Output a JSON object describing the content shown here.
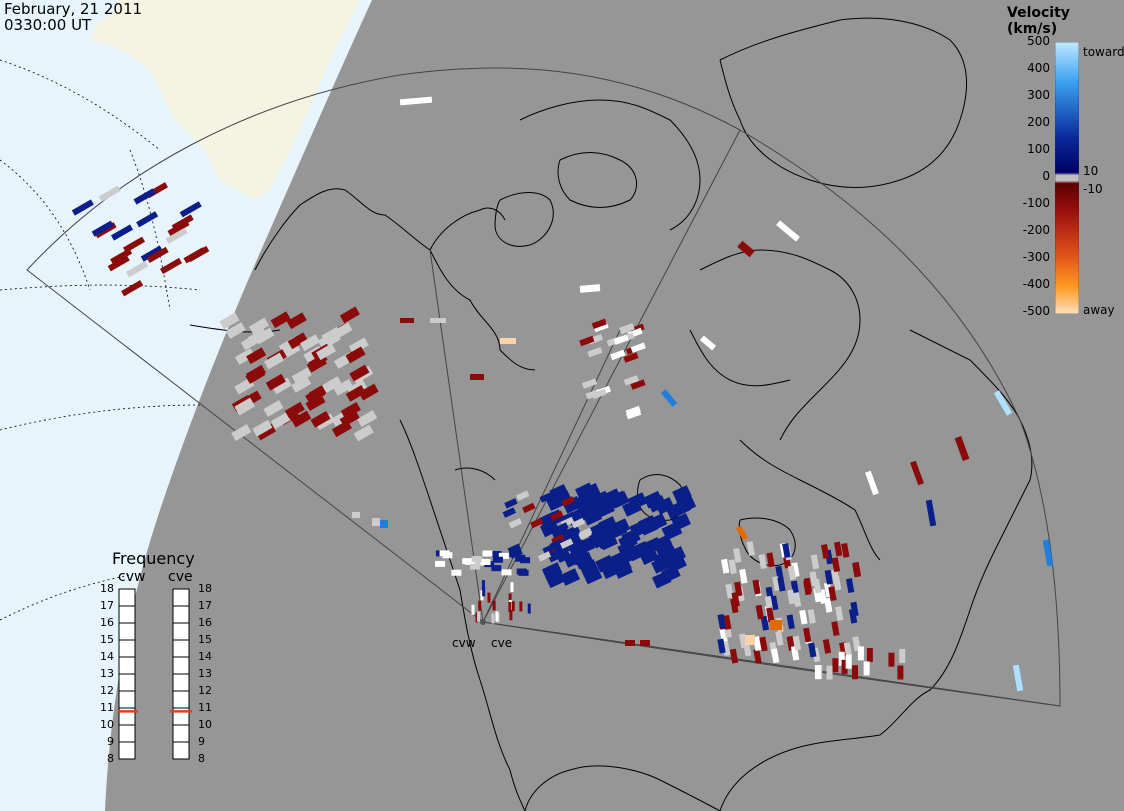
{
  "header": {
    "date": "February, 21 2011",
    "time": "0330:00 UT"
  },
  "colorbar": {
    "title": "Velocity (km/s)",
    "ticks": [
      "500",
      "400",
      "300",
      "200",
      "100",
      "10",
      "0",
      "-10",
      "-100",
      "-200",
      "-300",
      "-400",
      "-500"
    ],
    "toward_label": "toward",
    "away_label": "away",
    "colors": {
      "toward_high": "#aee0ff",
      "toward_mid": "#1e7fdc",
      "toward_low": "#0a1f8a",
      "near_zero": "#cccccc",
      "away_low": "#8b0a0a",
      "away_mid": "#e06a00",
      "away_high": "#ffd2a8"
    }
  },
  "frequency_panel": {
    "title": "Frequency",
    "stations": [
      "cvw",
      "cve"
    ],
    "ticks": [
      "18",
      "17",
      "16",
      "15",
      "14",
      "13",
      "12",
      "11",
      "10",
      "9",
      "8"
    ],
    "values_mhz": [
      10.8,
      10.8
    ]
  },
  "radar_sites": {
    "labels": [
      "cvw",
      "cve"
    ]
  },
  "map_colors": {
    "background_gray": "#969696",
    "ice_cap": "#f5f3e2",
    "ocean_day": "#e7f4fc"
  }
}
